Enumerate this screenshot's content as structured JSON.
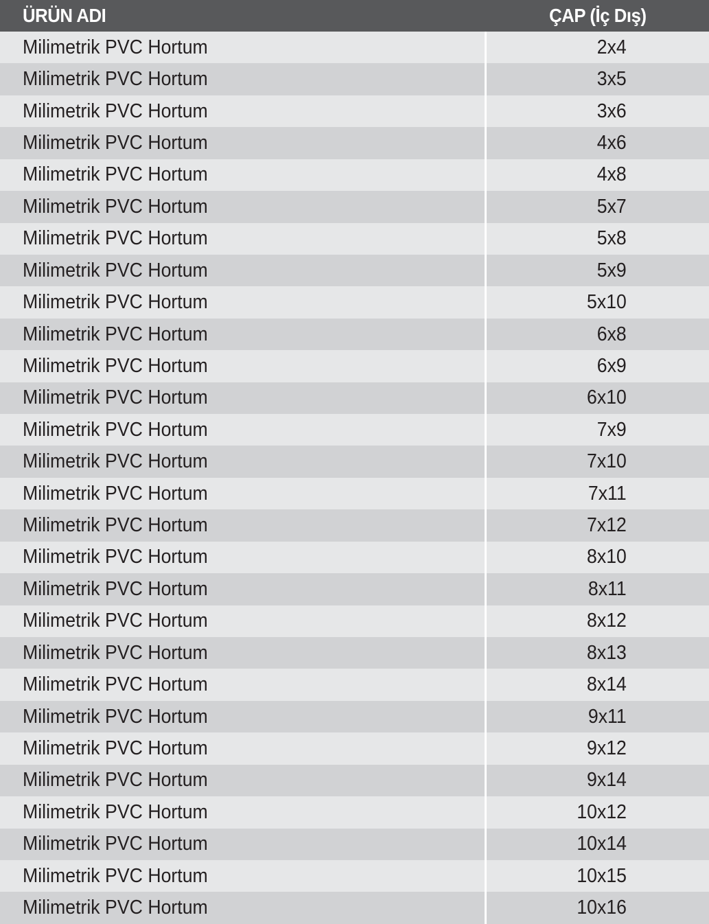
{
  "header": {
    "product_name": "ÜRÜN ADI",
    "diameter": "ÇAP (İç Dış)"
  },
  "colors": {
    "header_bg": "#58595b",
    "row_light": "#e6e7e8",
    "row_dark": "#d1d2d4",
    "text": "#231f20"
  },
  "rows": [
    {
      "name": "Milimetrik PVC Hortum",
      "size": "2x4"
    },
    {
      "name": "Milimetrik PVC Hortum",
      "size": "3x5"
    },
    {
      "name": "Milimetrik PVC Hortum",
      "size": "3x6"
    },
    {
      "name": "Milimetrik PVC Hortum",
      "size": "4x6"
    },
    {
      "name": "Milimetrik PVC Hortum",
      "size": "4x8"
    },
    {
      "name": "Milimetrik PVC Hortum",
      "size": "5x7"
    },
    {
      "name": "Milimetrik PVC Hortum",
      "size": "5x8"
    },
    {
      "name": "Milimetrik PVC Hortum",
      "size": "5x9"
    },
    {
      "name": "Milimetrik PVC Hortum",
      "size": "5x10"
    },
    {
      "name": "Milimetrik PVC Hortum",
      "size": "6x8"
    },
    {
      "name": "Milimetrik PVC Hortum",
      "size": "6x9"
    },
    {
      "name": "Milimetrik PVC Hortum",
      "size": "6x10"
    },
    {
      "name": "Milimetrik PVC Hortum",
      "size": "7x9"
    },
    {
      "name": "Milimetrik PVC Hortum",
      "size": "7x10"
    },
    {
      "name": "Milimetrik PVC Hortum",
      "size": "7x11"
    },
    {
      "name": "Milimetrik PVC Hortum",
      "size": "7x12"
    },
    {
      "name": "Milimetrik PVC Hortum",
      "size": "8x10"
    },
    {
      "name": "Milimetrik PVC Hortum",
      "size": "8x11"
    },
    {
      "name": "Milimetrik PVC Hortum",
      "size": "8x12"
    },
    {
      "name": "Milimetrik PVC Hortum",
      "size": "8x13"
    },
    {
      "name": "Milimetrik PVC Hortum",
      "size": "8x14"
    },
    {
      "name": "Milimetrik PVC Hortum",
      "size": "9x11"
    },
    {
      "name": "Milimetrik PVC Hortum",
      "size": "9x12"
    },
    {
      "name": "Milimetrik PVC Hortum",
      "size": "9x14"
    },
    {
      "name": "Milimetrik PVC Hortum",
      "size": "10x12"
    },
    {
      "name": "Milimetrik PVC Hortum",
      "size": "10x14"
    },
    {
      "name": "Milimetrik PVC Hortum",
      "size": "10x15"
    },
    {
      "name": "Milimetrik PVC Hortum",
      "size": "10x16"
    }
  ]
}
